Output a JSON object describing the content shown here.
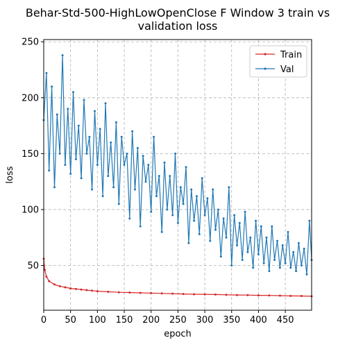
{
  "chart_data": {
    "type": "line",
    "title": "Behar-Std-500-HighLowOpenClose F Window 3 train vs validation loss",
    "title_lines": [
      "Behar-Std-500-HighLowOpenClose F Window 3 train vs",
      "validation loss"
    ],
    "xlabel": "epoch",
    "ylabel": "loss",
    "xlim": [
      0,
      499
    ],
    "ylim": [
      10,
      252
    ],
    "x_ticks": [
      0,
      50,
      100,
      150,
      200,
      250,
      300,
      350,
      400,
      450
    ],
    "y_ticks": [
      50,
      100,
      150,
      200,
      250
    ],
    "grid": true,
    "grid_style": "dashed",
    "legend_position": "top-right",
    "colors": {
      "Train": "#d62728",
      "Val": "#1f77b4"
    },
    "series": [
      {
        "name": "Train",
        "note": "values sampled every 10 epochs; noise small",
        "x": [
          0,
          2,
          5,
          10,
          20,
          30,
          40,
          50,
          60,
          70,
          80,
          90,
          100,
          120,
          140,
          160,
          180,
          200,
          220,
          240,
          260,
          280,
          300,
          320,
          340,
          360,
          380,
          400,
          420,
          440,
          460,
          480,
          499
        ],
        "values": [
          56,
          46,
          40,
          36,
          33,
          31.5,
          30.5,
          29.5,
          29,
          28.5,
          28,
          27.5,
          27,
          26.5,
          26,
          25.8,
          25.5,
          25.3,
          25,
          24.8,
          24.5,
          24.3,
          24.2,
          24,
          23.8,
          23.6,
          23.5,
          23.3,
          23.2,
          23,
          22.8,
          22.7,
          22.5
        ]
      },
      {
        "name": "Val",
        "x": [
          0,
          5,
          10,
          15,
          20,
          25,
          30,
          35,
          40,
          45,
          50,
          55,
          60,
          65,
          70,
          75,
          80,
          85,
          90,
          95,
          100,
          105,
          110,
          115,
          120,
          125,
          130,
          135,
          140,
          145,
          150,
          155,
          160,
          165,
          170,
          175,
          180,
          185,
          190,
          195,
          200,
          205,
          210,
          215,
          220,
          225,
          230,
          235,
          240,
          245,
          250,
          255,
          260,
          265,
          270,
          275,
          280,
          285,
          290,
          295,
          300,
          305,
          310,
          315,
          320,
          325,
          330,
          335,
          340,
          345,
          350,
          355,
          360,
          365,
          370,
          375,
          380,
          385,
          390,
          395,
          400,
          405,
          410,
          415,
          420,
          425,
          430,
          435,
          440,
          445,
          450,
          455,
          460,
          465,
          470,
          475,
          480,
          485,
          490,
          495,
          499
        ],
        "values": [
          180,
          222,
          135,
          210,
          120,
          185,
          150,
          238,
          140,
          190,
          132,
          205,
          145,
          175,
          128,
          198,
          150,
          165,
          118,
          188,
          140,
          172,
          112,
          195,
          130,
          160,
          120,
          178,
          105,
          165,
          140,
          150,
          92,
          170,
          118,
          155,
          85,
          148,
          125,
          140,
          98,
          165,
          112,
          130,
          80,
          142,
          100,
          130,
          95,
          150,
          88,
          120,
          105,
          138,
          70,
          118,
          90,
          112,
          78,
          128,
          95,
          110,
          72,
          118,
          82,
          100,
          58,
          92,
          75,
          120,
          50,
          95,
          68,
          88,
          55,
          98,
          62,
          75,
          48,
          90,
          60,
          85,
          52,
          75,
          45,
          85,
          55,
          72,
          48,
          68,
          52,
          80,
          48,
          62,
          45,
          70,
          50,
          65,
          42,
          90,
          55
        ]
      }
    ]
  }
}
